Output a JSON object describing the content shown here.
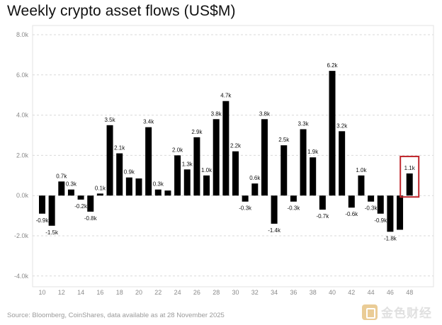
{
  "title": "Weekly crypto asset flows (US$M)",
  "source": "Source: Bloomberg, CoinShares, data available as at 28 November 2025",
  "watermark": {
    "text": "金色财经"
  },
  "colors": {
    "bar": "#000000",
    "highlight": "#c0272d",
    "grid": "#d9d9d9",
    "tick": "#8a8a8a"
  },
  "chart_data": {
    "type": "bar",
    "title": "Weekly crypto asset flows (US$M)",
    "ylim": [
      -4.0,
      8.0
    ],
    "yticks": [
      "-4.0k",
      "-2.0k",
      "0.0k",
      "2.0k",
      "4.0k",
      "6.0k",
      "8.0k"
    ],
    "ytick_values": [
      -4,
      -2,
      0,
      2,
      4,
      6,
      8
    ],
    "grid": "horizontal",
    "categories": [
      10,
      11,
      12,
      13,
      14,
      15,
      16,
      17,
      18,
      19,
      20,
      21,
      22,
      23,
      24,
      25,
      26,
      27,
      28,
      29,
      30,
      31,
      32,
      33,
      34,
      35,
      36,
      37,
      38,
      39,
      40,
      41,
      42,
      43,
      44,
      45,
      46,
      47,
      48
    ],
    "xtick_labels": [
      "10",
      "12",
      "14",
      "16",
      "18",
      "20",
      "22",
      "24",
      "26",
      "28",
      "30",
      "32",
      "34",
      "36",
      "38",
      "40",
      "42",
      "44",
      "46",
      "48"
    ],
    "values": [
      -0.9,
      -1.5,
      0.7,
      0.3,
      -0.2,
      -0.8,
      0.1,
      3.5,
      2.1,
      0.9,
      0.85,
      3.4,
      0.3,
      0.25,
      2.0,
      1.3,
      2.9,
      1.0,
      3.8,
      4.7,
      2.2,
      -0.3,
      0.6,
      3.8,
      -1.4,
      2.5,
      -0.3,
      3.3,
      1.9,
      -0.7,
      6.2,
      3.2,
      -0.6,
      1.0,
      -0.3,
      -0.9,
      -1.8,
      -1.7,
      1.1
    ],
    "data_labels": [
      "-0.9k",
      "-1.5k",
      "0.7k",
      "0.3k",
      "-0.2k",
      "-0.8k",
      "0.1k",
      "3.5k",
      "2.1k",
      "0.9k",
      "",
      "3.4k",
      "0.3k",
      "",
      "2.0k",
      "1.3k",
      "2.9k",
      "1.0k",
      "3.8k",
      "4.7k",
      "2.2k",
      "-0.3k",
      "0.6k",
      "3.8k",
      "-1.4k",
      "2.5k",
      "-0.3k",
      "3.3k",
      "1.9k",
      "-0.7k",
      "6.2k",
      "3.2k",
      "-0.6k",
      "1.0k",
      "-0.3k",
      "-0.9k",
      "-1.8k",
      "",
      "1.1k"
    ],
    "highlight_index": 38
  }
}
